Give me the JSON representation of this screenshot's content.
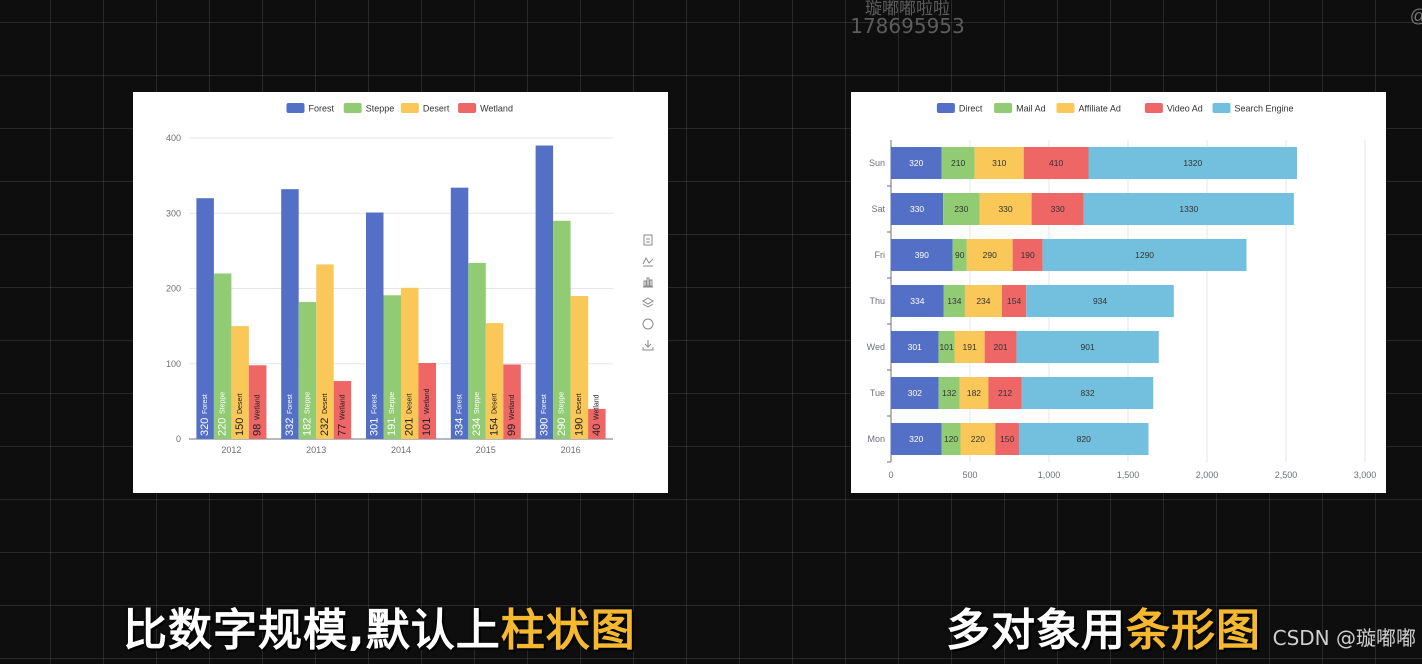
{
  "watermark": {
    "name": "璇嘟嘟啦啦",
    "id": "178695953",
    "corner": "@"
  },
  "captions": {
    "left": {
      "plain": "比数字规模,默认上",
      "highlight": "柱状图"
    },
    "right": {
      "plain": "多对象用",
      "highlight": "条形图"
    }
  },
  "credit": "CSDN @璇嘟嘟",
  "toolbox_icons": [
    "data-view-icon",
    "line-chart-icon",
    "bar-chart-icon",
    "stack-icon",
    "restore-icon",
    "download-icon"
  ],
  "chart_data": [
    {
      "type": "bar",
      "categories": [
        "2012",
        "2013",
        "2014",
        "2015",
        "2016"
      ],
      "ylim": [
        0,
        400
      ],
      "yticks": [
        0,
        100,
        200,
        300,
        400
      ],
      "legend_position": "top-center",
      "grid": true,
      "series": [
        {
          "name": "Forest",
          "color": "#5470c6",
          "values": [
            320,
            332,
            301,
            334,
            390
          ]
        },
        {
          "name": "Steppe",
          "color": "#91cc75",
          "values": [
            220,
            182,
            191,
            234,
            290
          ]
        },
        {
          "name": "Desert",
          "color": "#fac858",
          "values": [
            150,
            232,
            201,
            154,
            190
          ]
        },
        {
          "name": "Wetland",
          "color": "#ee6666",
          "values": [
            98,
            77,
            101,
            99,
            40
          ]
        }
      ]
    },
    {
      "type": "bar",
      "orientation": "horizontal",
      "stacked": true,
      "categories": [
        "Mon",
        "Tue",
        "Wed",
        "Thu",
        "Fri",
        "Sat",
        "Sun"
      ],
      "xlim": [
        0,
        3000
      ],
      "xticks": [
        0,
        500,
        1000,
        1500,
        2000,
        2500,
        3000
      ],
      "xtick_labels": [
        "0",
        "500",
        "1,000",
        "1,500",
        "2,000",
        "2,500",
        "3,000"
      ],
      "legend_position": "top-center",
      "grid": true,
      "series": [
        {
          "name": "Direct",
          "color": "#5470c6",
          "values": [
            320,
            302,
            301,
            334,
            390,
            330,
            320
          ]
        },
        {
          "name": "Mail Ad",
          "color": "#91cc75",
          "values": [
            120,
            132,
            101,
            134,
            90,
            230,
            210
          ]
        },
        {
          "name": "Affiliate Ad",
          "color": "#fac858",
          "values": [
            220,
            182,
            191,
            234,
            290,
            330,
            310
          ]
        },
        {
          "name": "Video Ad",
          "color": "#ee6666",
          "values": [
            150,
            212,
            201,
            154,
            190,
            330,
            410
          ]
        },
        {
          "name": "Search Engine",
          "color": "#73c0de",
          "values": [
            820,
            832,
            901,
            934,
            1290,
            1330,
            1320
          ]
        }
      ]
    }
  ]
}
